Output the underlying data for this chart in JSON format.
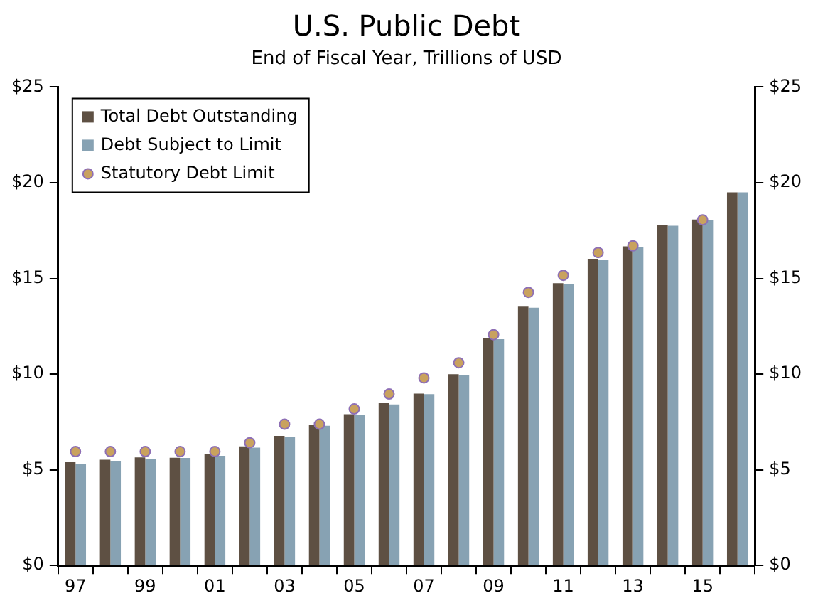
{
  "chart_data": {
    "type": "bar",
    "title": "U.S. Public Debt",
    "subtitle": "End of Fiscal Year, Trillions of USD",
    "categories": [
      "97",
      null,
      "99",
      null,
      "01",
      null,
      "03",
      null,
      "05",
      null,
      "07",
      null,
      "09",
      null,
      "11",
      null,
      "13",
      null,
      "15",
      null
    ],
    "series": [
      {
        "name": "Total Debt Outstanding",
        "color": "#5e5043",
        "values": [
          5.4,
          5.53,
          5.65,
          5.63,
          5.81,
          6.22,
          6.77,
          7.35,
          7.9,
          8.48,
          8.98,
          9.99,
          11.87,
          13.52,
          14.75,
          16.02,
          16.67,
          17.77,
          18.08,
          19.5
        ]
      },
      {
        "name": "Debt Subject to Limit",
        "color": "#87a2b3",
        "values": [
          5.31,
          5.44,
          5.58,
          5.62,
          5.73,
          6.16,
          6.73,
          7.3,
          7.85,
          8.41,
          8.95,
          9.97,
          11.82,
          13.47,
          14.7,
          15.97,
          16.65,
          17.75,
          18.04,
          19.5
        ]
      },
      {
        "name": "Statutory Debt Limit",
        "type": "scatter",
        "color": "#c9a25e",
        "values": [
          5.95,
          5.95,
          5.95,
          5.95,
          5.95,
          6.41,
          7.38,
          7.38,
          8.18,
          8.96,
          9.8,
          10.59,
          12.06,
          14.27,
          15.16,
          16.35,
          16.7,
          null,
          18.06,
          null
        ]
      }
    ],
    "ylim": [
      0,
      25
    ],
    "yticks": [
      {
        "value": 0,
        "label": "$0"
      },
      {
        "value": 5,
        "label": "$5"
      },
      {
        "value": 10,
        "label": "$10"
      },
      {
        "value": 15,
        "label": "$15"
      },
      {
        "value": 20,
        "label": "$20"
      },
      {
        "value": 25,
        "label": "$25"
      }
    ],
    "y2lim": [
      0,
      25
    ],
    "y2ticks": [
      {
        "value": 0,
        "label": "$0"
      },
      {
        "value": 5,
        "label": "$5"
      },
      {
        "value": 10,
        "label": "$10"
      },
      {
        "value": 15,
        "label": "$15"
      },
      {
        "value": 20,
        "label": "$20"
      },
      {
        "value": 25,
        "label": "$25"
      }
    ],
    "grid": false,
    "legend": "top left",
    "marker": "circle"
  }
}
